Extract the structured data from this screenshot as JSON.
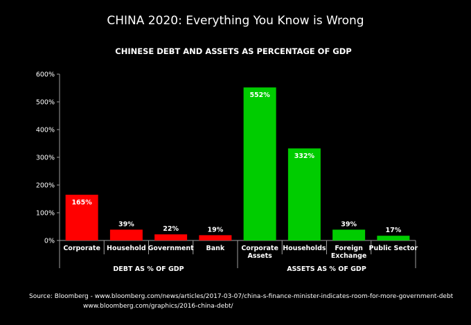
{
  "header": {
    "title": "CHINA 2020: Everything You Know is Wrong"
  },
  "chart_data": {
    "type": "bar",
    "title": "CHINESE DEBT AND ASSETS AS PERCENTAGE OF GDP",
    "xlabel": "",
    "ylabel": "",
    "ylim": [
      0,
      600
    ],
    "yticks": [
      0,
      100,
      200,
      300,
      400,
      500,
      600
    ],
    "ytick_labels": [
      "0%",
      "100%",
      "200%",
      "300%",
      "400%",
      "500%",
      "600%"
    ],
    "grid": false,
    "legend": "none",
    "categories": [
      "Corporate",
      "Household",
      "Government",
      "Bank",
      "Corporate Assets",
      "Households",
      "Foreign Exchange",
      "Public Sector"
    ],
    "category_lines": [
      [
        "Corporate"
      ],
      [
        "Household"
      ],
      [
        "Government"
      ],
      [
        "Bank"
      ],
      [
        "Corporate",
        "Assets"
      ],
      [
        "Households"
      ],
      [
        "Foreign",
        "Exchange"
      ],
      [
        "Public Sector"
      ]
    ],
    "values": [
      165,
      39,
      22,
      19,
      552,
      332,
      39,
      17
    ],
    "value_labels": [
      "165%",
      "39%",
      "22%",
      "19%",
      "552%",
      "332%",
      "39%",
      "17%"
    ],
    "bar_colors": [
      "#ff0000",
      "#ff0000",
      "#ff0000",
      "#ff0000",
      "#00cc00",
      "#00cc00",
      "#00cc00",
      "#00cc00"
    ],
    "groups": [
      {
        "label": "DEBT AS % OF GDP",
        "start": 0,
        "end": 3
      },
      {
        "label": "ASSETS AS % OF GDP",
        "start": 4,
        "end": 7
      }
    ]
  },
  "source": {
    "line1": "Source: Bloomberg - www.bloomberg.com/news/articles/2017-03-07/china-s-finance-minister-indicates-room-for-more-government-debt",
    "line2": "www.bloomberg.com/graphics/2016-china-debt/"
  },
  "colors": {
    "background": "#000000",
    "debt": "#ff0000",
    "assets": "#00cc00",
    "axis": "#a0a0a0"
  }
}
